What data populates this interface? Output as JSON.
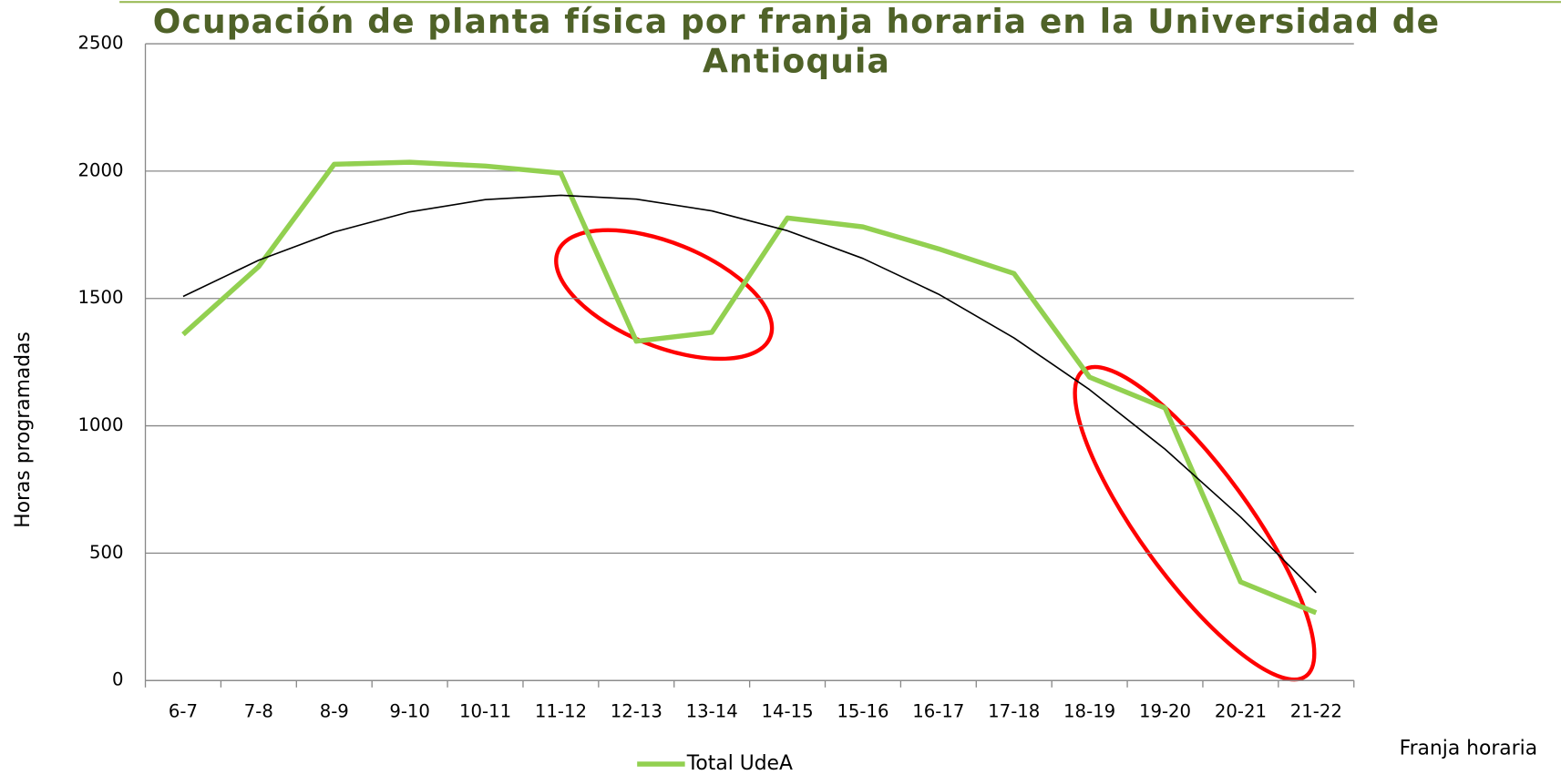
{
  "chart_data": {
    "type": "line",
    "title": "Ocupación de planta física por franja horaria en la Universidad de Antioquia",
    "x_label": "Franja horaria",
    "y_label": "Horas programadas",
    "categories": [
      "6-7",
      "7-8",
      "8-9",
      "9-10",
      "10-11",
      "11-12",
      "12-13",
      "13-14",
      "14-15",
      "15-16",
      "16-17",
      "17-18",
      "18-19",
      "19-20",
      "20-21",
      "21-22"
    ],
    "series": [
      {
        "name": "Total UdeA",
        "color": "#92d050",
        "values": [
          1359,
          1625,
          2027,
          2035,
          2020,
          1992,
          1332,
          1367,
          1816,
          1781,
          1695,
          1598,
          1191,
          1070,
          387,
          266
        ]
      }
    ],
    "trendline": {
      "color": "#000000",
      "values": [
        1508,
        1650,
        1761,
        1840,
        1888,
        1905,
        1890,
        1844,
        1766,
        1657,
        1517,
        1345,
        1142,
        908,
        642,
        345
      ]
    },
    "ylim": [
      0,
      2500
    ],
    "yticks": [
      0,
      500,
      1000,
      1500,
      2000,
      2500
    ],
    "grid": true,
    "legend": "bottom"
  }
}
